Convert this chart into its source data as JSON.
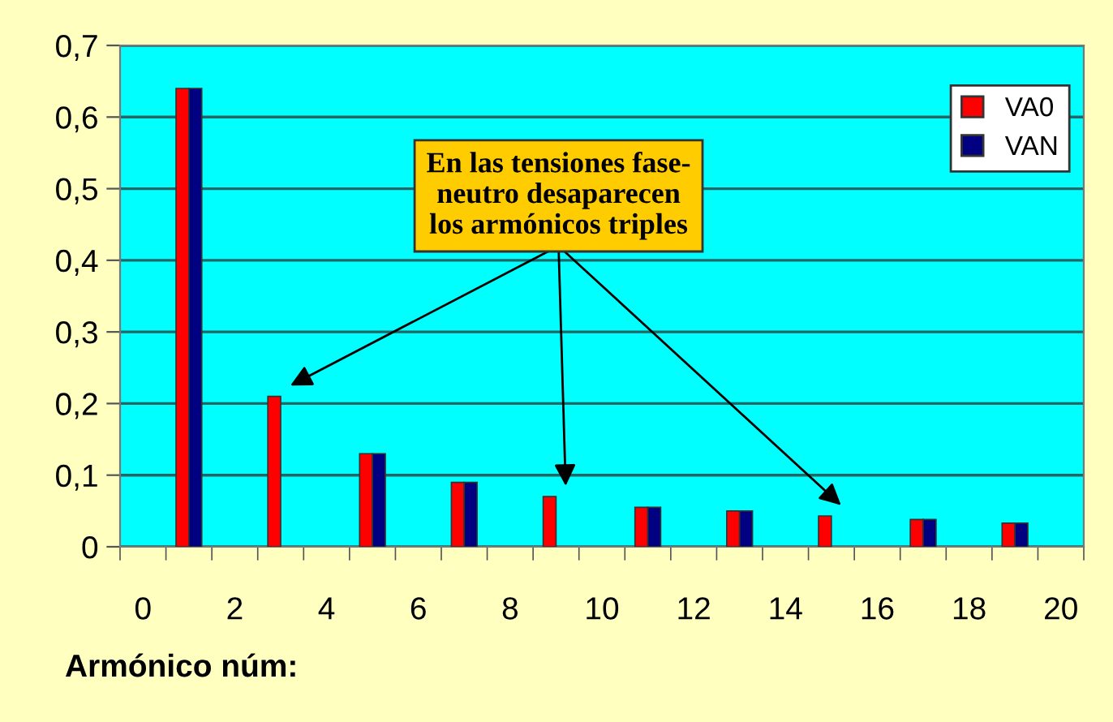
{
  "chart_data": {
    "type": "bar",
    "xlabel": "Armónico núm:",
    "categories": [
      "0",
      null,
      "2",
      null,
      "4",
      null,
      "6",
      null,
      "8",
      null,
      "10",
      null,
      "12",
      null,
      "14",
      null,
      "16",
      null,
      "18",
      null,
      "20"
    ],
    "series": [
      {
        "name": "VA0",
        "color": "#ff0000",
        "values": [
          null,
          0.64,
          null,
          0.21,
          null,
          0.13,
          null,
          0.09,
          null,
          0.07,
          null,
          0.055,
          null,
          0.05,
          null,
          0.043,
          null,
          0.038,
          null,
          0.033,
          null
        ]
      },
      {
        "name": "VAN",
        "color": "#000080",
        "values": [
          null,
          0.64,
          null,
          null,
          null,
          0.13,
          null,
          0.09,
          null,
          null,
          null,
          0.055,
          null,
          0.05,
          null,
          null,
          null,
          0.038,
          null,
          0.033,
          null
        ]
      }
    ],
    "ylim": [
      0,
      0.7
    ],
    "yticks": [
      0,
      {
        "value": 0.1,
        "label": "0,1"
      },
      {
        "value": 0.2,
        "label": "0,2"
      },
      {
        "value": 0.3,
        "label": "0,3"
      },
      {
        "value": 0.4,
        "label": "0,4"
      },
      {
        "value": 0.5,
        "label": "0,5"
      },
      {
        "value": 0.6,
        "label": "0,6"
      },
      {
        "value": 0.7,
        "label": "0,7"
      }
    ],
    "grid": "y",
    "legend": "top right",
    "annotations": [
      "En las tensiones fase-\nneutro desaparecen\nlos armónicos triples"
    ]
  }
}
